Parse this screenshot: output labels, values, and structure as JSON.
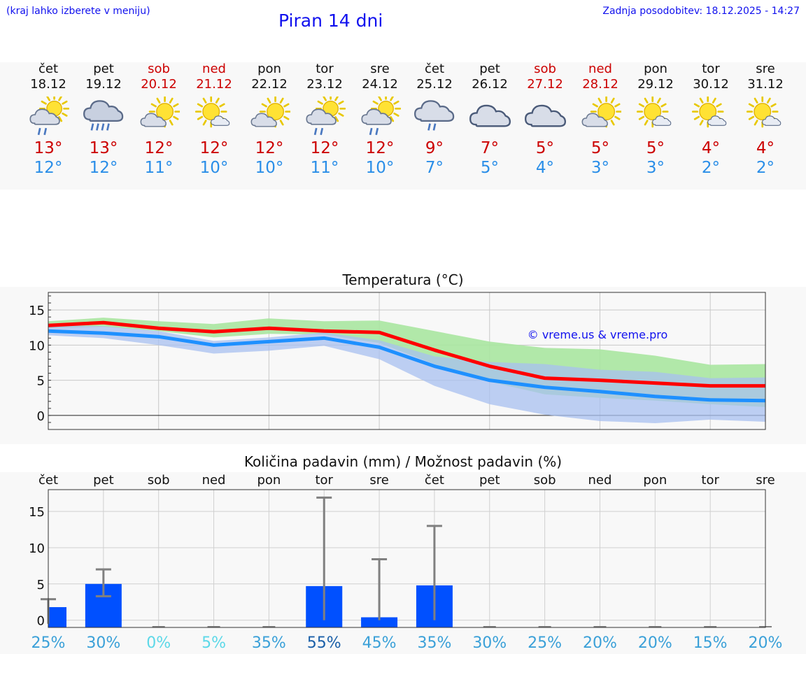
{
  "header": {
    "hint": "(kraj lahko izberete v meniju)",
    "title": "Piran 14 dni",
    "updated": "Zadnja posodobitev: 18.12.2025 - 14:27"
  },
  "forecast": [
    {
      "day": "čet",
      "date": "18.12",
      "max": "13°",
      "min": "12°",
      "weekend": false,
      "icon": "sun-cloud-rain-icon"
    },
    {
      "day": "pet",
      "date": "19.12",
      "max": "13°",
      "min": "12°",
      "weekend": false,
      "icon": "cloud-heavy-rain-icon"
    },
    {
      "day": "sob",
      "date": "20.12",
      "max": "12°",
      "min": "11°",
      "weekend": true,
      "icon": "sun-cloud-icon"
    },
    {
      "day": "ned",
      "date": "21.12",
      "max": "12°",
      "min": "10°",
      "weekend": true,
      "icon": "sun-small-cloud-icon"
    },
    {
      "day": "pon",
      "date": "22.12",
      "max": "12°",
      "min": "10°",
      "weekend": false,
      "icon": "sun-cloud-icon"
    },
    {
      "day": "tor",
      "date": "23.12",
      "max": "12°",
      "min": "11°",
      "weekend": false,
      "icon": "sun-cloud-rain-icon"
    },
    {
      "day": "sre",
      "date": "24.12",
      "max": "12°",
      "min": "10°",
      "weekend": false,
      "icon": "sun-cloud-rain-icon"
    },
    {
      "day": "čet",
      "date": "25.12",
      "max": "9°",
      "min": "7°",
      "weekend": false,
      "icon": "cloud-rain-icon"
    },
    {
      "day": "pet",
      "date": "26.12",
      "max": "7°",
      "min": "5°",
      "weekend": false,
      "icon": "cloud-icon"
    },
    {
      "day": "sob",
      "date": "27.12",
      "max": "5°",
      "min": "4°",
      "weekend": true,
      "icon": "cloud-icon"
    },
    {
      "day": "ned",
      "date": "28.12",
      "max": "5°",
      "min": "3°",
      "weekend": true,
      "icon": "sun-cloud-icon"
    },
    {
      "day": "pon",
      "date": "29.12",
      "max": "5°",
      "min": "3°",
      "weekend": false,
      "icon": "sun-small-cloud-icon"
    },
    {
      "day": "tor",
      "date": "30.12",
      "max": "4°",
      "min": "2°",
      "weekend": false,
      "icon": "sun-small-cloud-icon"
    },
    {
      "day": "sre",
      "date": "31.12",
      "max": "4°",
      "min": "2°",
      "weekend": false,
      "icon": "sun-small-cloud-icon"
    }
  ],
  "colors": {
    "max_line": "#ff0000",
    "min_line": "#1e90ff",
    "band_max": "#a8e6a0",
    "band_min": "#a8c0f0",
    "bar": "#0050ff",
    "error_bar": "#808080",
    "weekend": "#cc0000"
  },
  "chart_data": [
    {
      "type": "line",
      "title": "Temperatura (°C)",
      "watermark": "© vreme.us & vreme.pro",
      "x": [
        "18.12",
        "19.12",
        "20.12",
        "21.12",
        "22.12",
        "23.12",
        "24.12",
        "25.12",
        "26.12",
        "27.12",
        "28.12",
        "29.12",
        "30.12",
        "31.12"
      ],
      "ylim": [
        -2,
        17.5
      ],
      "yticks": [
        0,
        5,
        10,
        15
      ],
      "series": [
        {
          "name": "max",
          "values": [
            12.8,
            13.2,
            12.4,
            11.9,
            12.4,
            12.0,
            11.8,
            9.3,
            7.0,
            5.3,
            5.0,
            4.6,
            4.2,
            4.2
          ]
        },
        {
          "name": "min",
          "values": [
            12.0,
            11.7,
            11.2,
            10.0,
            10.5,
            11.0,
            9.7,
            7.0,
            5.0,
            4.0,
            3.4,
            2.7,
            2.2,
            2.1
          ]
        }
      ],
      "bands": [
        {
          "name": "max_range",
          "upper": [
            13.4,
            13.9,
            13.4,
            13.0,
            13.8,
            13.4,
            13.5,
            12.0,
            10.5,
            9.6,
            9.4,
            8.5,
            7.2,
            7.3
          ],
          "lower": [
            12.4,
            12.6,
            12.0,
            11.1,
            11.6,
            11.5,
            10.3,
            7.3,
            4.8,
            3.0,
            2.5,
            2.1,
            1.6,
            1.2
          ]
        },
        {
          "name": "min_range",
          "upper": [
            12.8,
            12.7,
            12.0,
            10.6,
            11.1,
            11.8,
            10.7,
            8.4,
            7.6,
            7.3,
            6.5,
            6.2,
            5.3,
            5.4
          ],
          "lower": [
            11.4,
            11.0,
            10.0,
            8.8,
            9.2,
            9.9,
            8.0,
            4.2,
            1.6,
            0.1,
            -0.8,
            -1.1,
            -0.6,
            -0.9
          ]
        }
      ]
    },
    {
      "type": "bar",
      "title": "Količina padavin (mm) / Možnost padavin (%)",
      "categories": [
        "čet",
        "pet",
        "sob",
        "ned",
        "pon",
        "tor",
        "sre",
        "čet",
        "pet",
        "sob",
        "ned",
        "pon",
        "tor",
        "sre"
      ],
      "ylim": [
        -1,
        18
      ],
      "yticks": [
        0,
        5,
        10,
        15
      ],
      "values": [
        1.8,
        5.0,
        0,
        0,
        0,
        4.7,
        0.4,
        4.8,
        0,
        0,
        0,
        0,
        0,
        0
      ],
      "error_low": [
        -0.5,
        3.3,
        0,
        0,
        0,
        0,
        0,
        0,
        0,
        0,
        0,
        0,
        0,
        0
      ],
      "error_high": [
        2.9,
        7.0,
        0,
        0,
        0,
        16.9,
        8.4,
        13.0,
        0,
        0,
        0,
        0,
        0,
        0
      ],
      "probability": [
        "25%",
        "30%",
        "0%",
        "5%",
        "35%",
        "55%",
        "45%",
        "35%",
        "30%",
        "25%",
        "20%",
        "20%",
        "15%",
        "20%"
      ]
    }
  ]
}
